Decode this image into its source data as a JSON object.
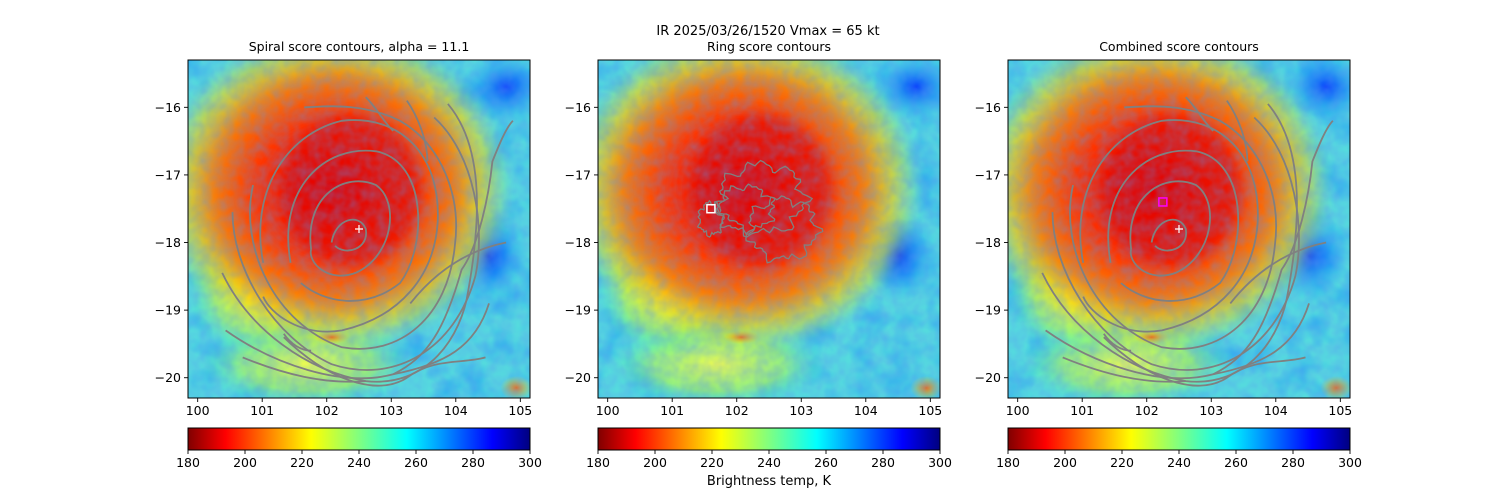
{
  "figure": {
    "suptitle_line1": "IR  2025/03/26/1520    Vmax = 65 kt",
    "colorbar_label": "Brightness temp, K"
  },
  "chart_data": [
    {
      "type": "heatmap",
      "title": "Spiral score contours, alpha = 11.1",
      "colormap": "jet",
      "xlim": [
        99.85,
        105.15
      ],
      "ylim": [
        -20.3,
        -15.3
      ],
      "xticks": [
        100,
        101,
        102,
        103,
        104,
        105
      ],
      "yticks": [
        -16,
        -17,
        -18,
        -19,
        -20
      ],
      "storm_center": [
        102.3,
        -17.3
      ],
      "markers": [
        {
          "kind": "plus",
          "color": "#ffffff",
          "x": 102.5,
          "y": -17.8
        }
      ],
      "overlay": "spiral-contours",
      "colorbar": {
        "ticks": [
          180,
          200,
          220,
          240,
          260,
          280,
          300
        ],
        "range": [
          180,
          300
        ]
      }
    },
    {
      "type": "heatmap",
      "title": "Ring score contours",
      "colormap": "jet",
      "xlim": [
        99.85,
        105.15
      ],
      "ylim": [
        -20.3,
        -15.3
      ],
      "xticks": [
        100,
        101,
        102,
        103,
        104,
        105
      ],
      "yticks": [
        -16,
        -17,
        -18,
        -19,
        -20
      ],
      "storm_center": [
        102.3,
        -17.3
      ],
      "markers": [
        {
          "kind": "square",
          "color": "#ffffff",
          "x": 101.6,
          "y": -17.5
        }
      ],
      "overlay": "ring-contours",
      "colorbar": {
        "ticks": [
          180,
          200,
          220,
          240,
          260,
          280,
          300
        ],
        "range": [
          180,
          300
        ]
      }
    },
    {
      "type": "heatmap",
      "title": "Combined score contours",
      "colormap": "jet",
      "xlim": [
        99.85,
        105.15
      ],
      "ylim": [
        -20.3,
        -15.3
      ],
      "xticks": [
        100,
        101,
        102,
        103,
        104,
        105
      ],
      "yticks": [
        -16,
        -17,
        -18,
        -19,
        -20
      ],
      "storm_center": [
        102.3,
        -17.3
      ],
      "markers": [
        {
          "kind": "plus",
          "color": "#ffffff",
          "x": 102.5,
          "y": -17.8
        },
        {
          "kind": "square",
          "color": "#ff00ff",
          "x": 102.25,
          "y": -17.4
        }
      ],
      "overlay": "spiral-contours",
      "colorbar": {
        "ticks": [
          180,
          200,
          220,
          240,
          260,
          280,
          300
        ],
        "range": [
          180,
          300
        ]
      }
    }
  ]
}
